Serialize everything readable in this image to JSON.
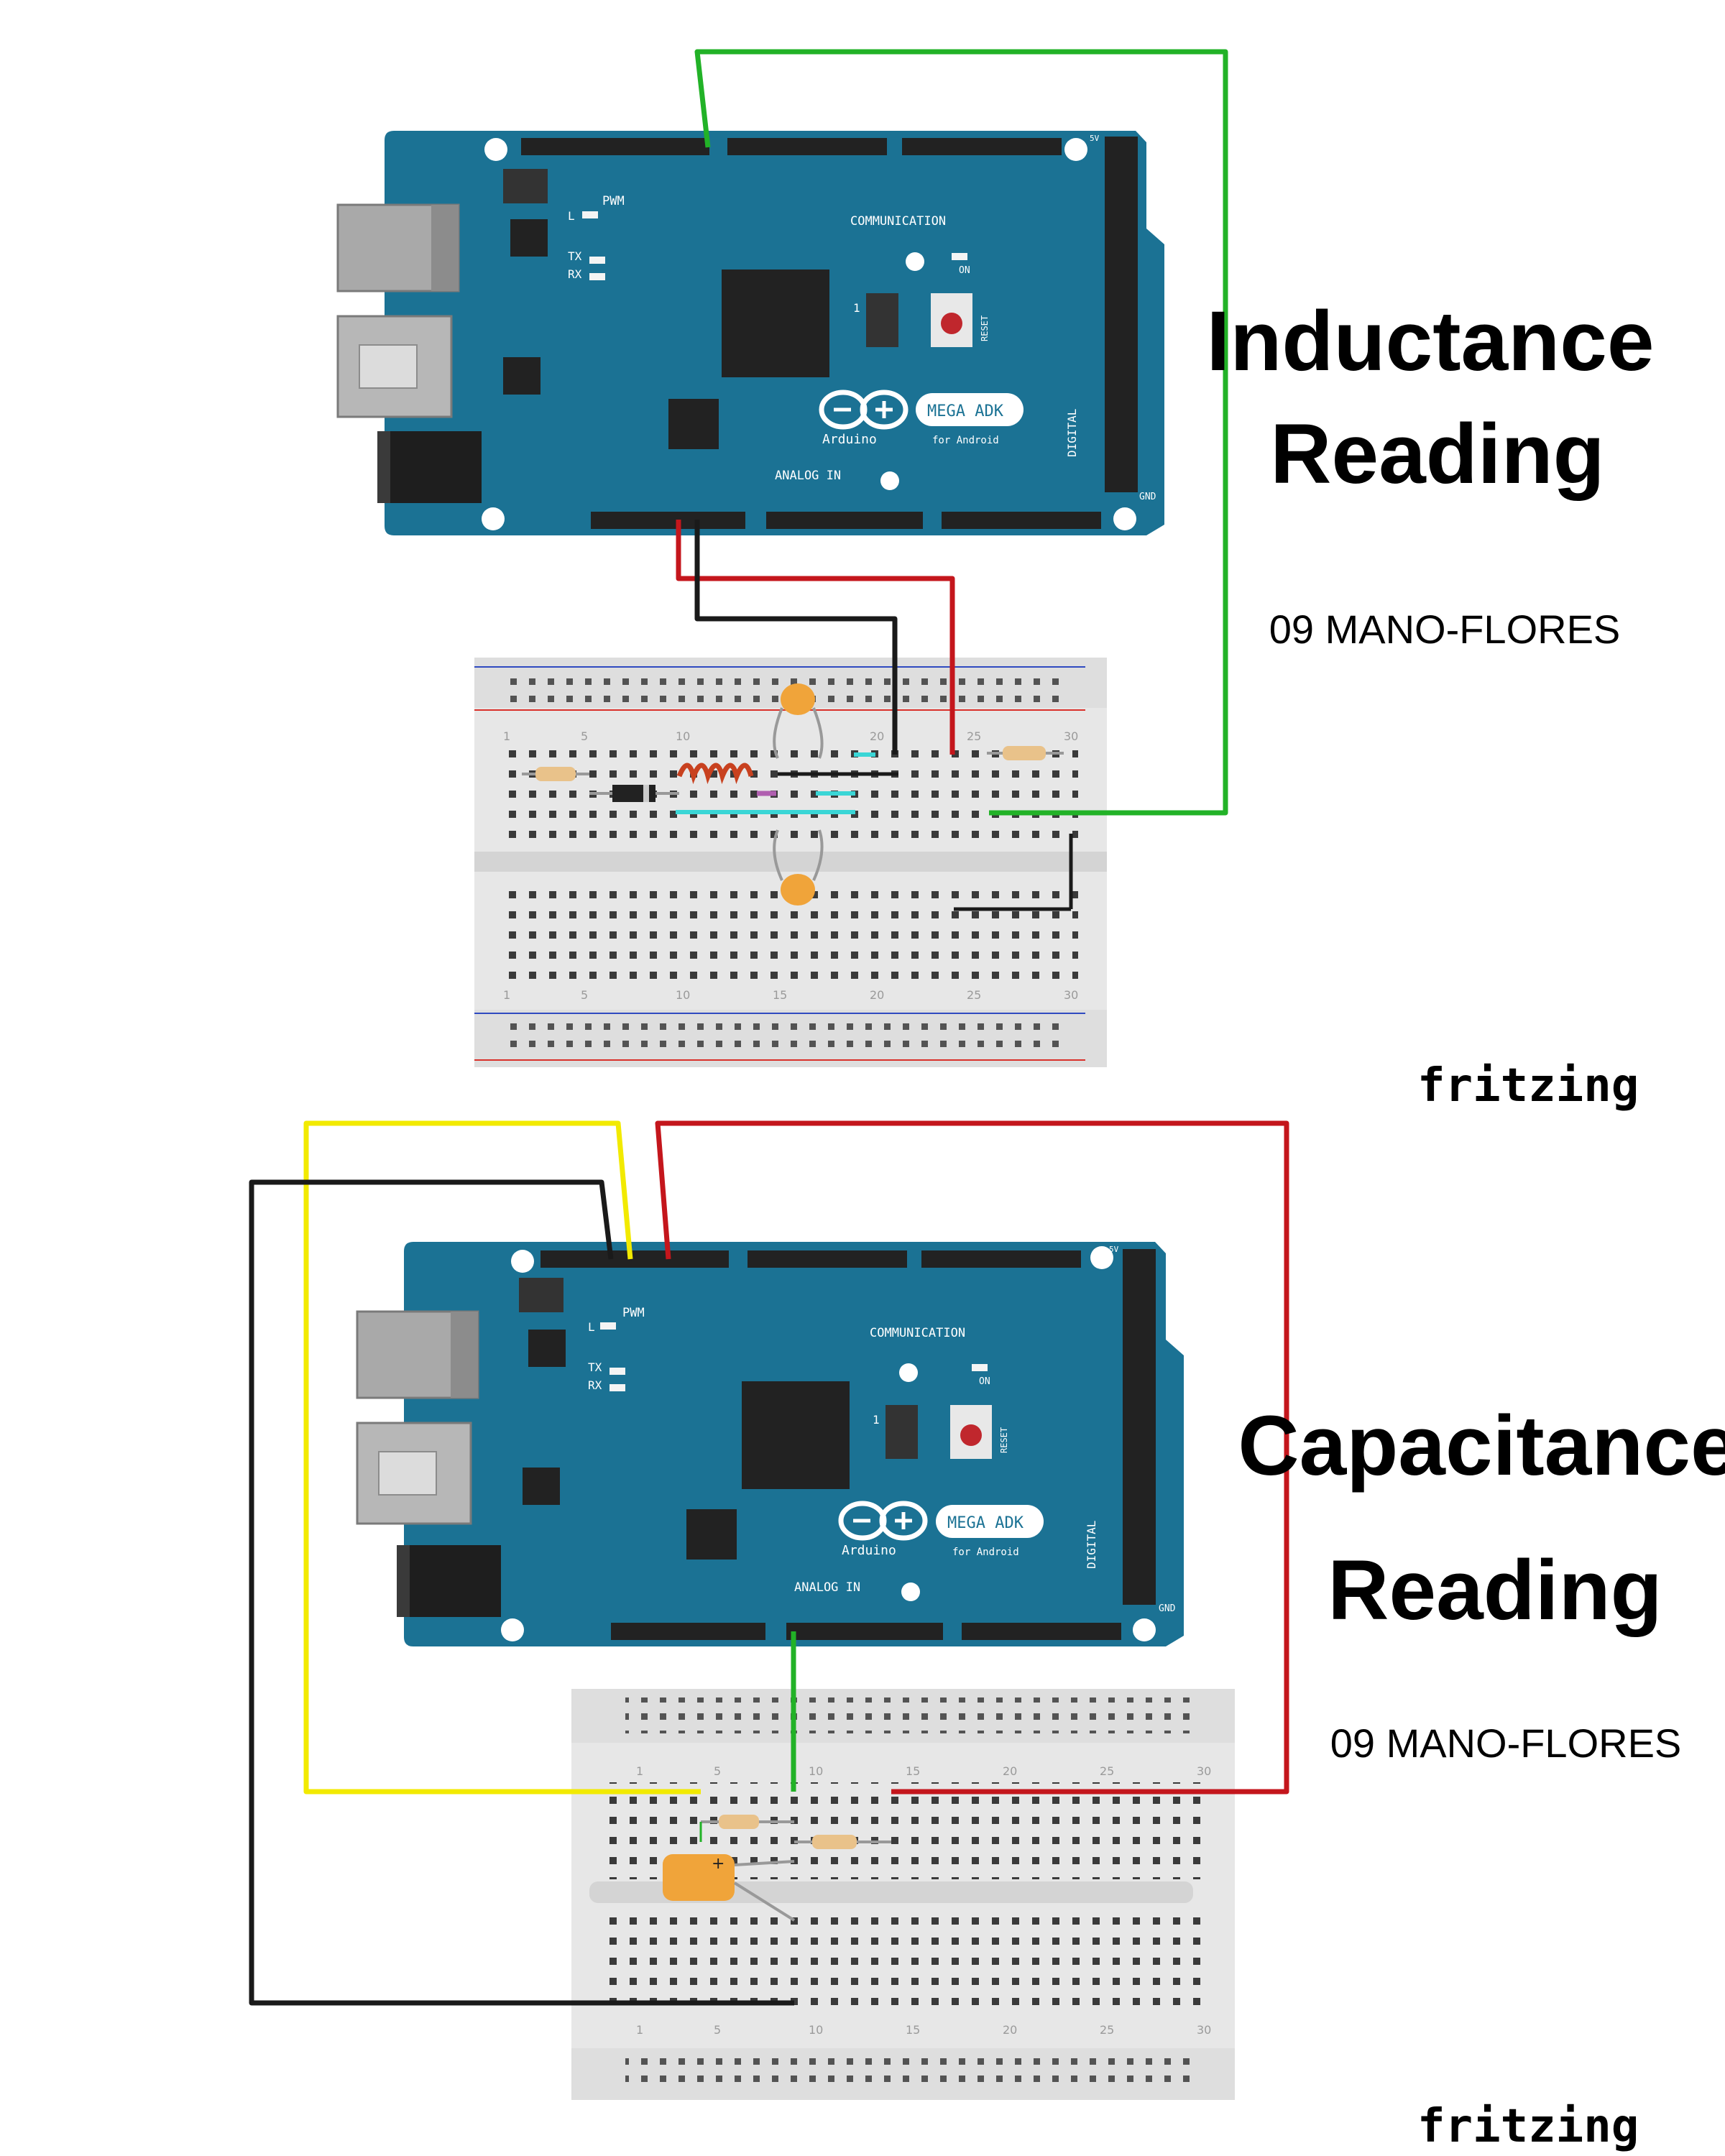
{
  "diagrams": [
    {
      "title_lines": [
        "Inductance",
        "Reading"
      ],
      "author": "09 MANO-FLORES",
      "brand": "fritzing",
      "board": {
        "name": "MEGA ADK",
        "sub": "for Android",
        "maker": "Arduino",
        "labels": {
          "pwm": "PWM",
          "communication": "COMMUNICATION",
          "analog_in": "ANALOG IN",
          "digital": "DIGITAL",
          "on": "ON",
          "reset": "RESET",
          "tx": "TX",
          "rx": "RX",
          "l": "L",
          "icsp_one": "1",
          "five_v": "5V",
          "gnd": "GND"
        }
      },
      "wire_colors": {
        "green": "#22b227",
        "red": "#c4161c",
        "black": "#1a1a1a"
      }
    },
    {
      "title_lines": [
        "Capacitance",
        "Reading"
      ],
      "author": "09 MANO-FLORES",
      "brand": "fritzing",
      "board": {
        "name": "MEGA ADK",
        "sub": "for Android",
        "maker": "Arduino",
        "labels": {
          "pwm": "PWM",
          "communication": "COMMUNICATION",
          "analog_in": "ANALOG IN",
          "digital": "DIGITAL",
          "on": "ON",
          "reset": "RESET",
          "tx": "TX",
          "rx": "RX",
          "l": "L",
          "icsp_one": "1",
          "five_v": "5V",
          "gnd": "GND"
        }
      },
      "wire_colors": {
        "yellow": "#f2ea00",
        "red": "#c4161c",
        "black": "#1a1a1a",
        "green": "#22b227"
      }
    }
  ],
  "colors": {
    "board": "#1b7294",
    "board_dark": "#155b77",
    "breadboard": "#e7e7e7",
    "rail_red": "#d9302a",
    "rail_blue": "#2f4ac0",
    "resistor_body": "#e9c28a",
    "capacitor": "#f0a43a",
    "inductor": "#c8411f",
    "cyan_wire": "#3ad6d6"
  }
}
